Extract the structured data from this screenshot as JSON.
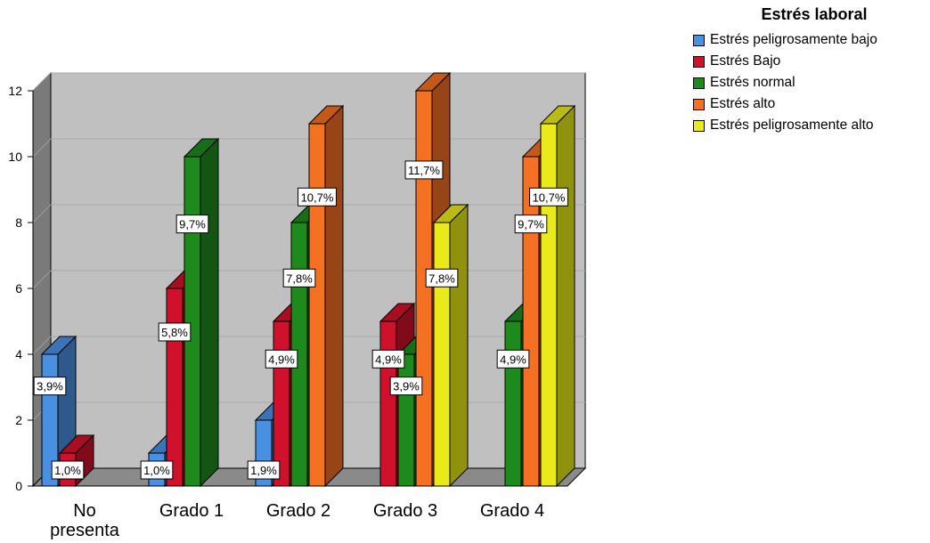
{
  "legend": {
    "title": "Estrés laboral",
    "items": [
      {
        "label": "Estrés peligrosamente bajo",
        "color": "#4a90e2"
      },
      {
        "label": "Estrés Bajo",
        "color": "#d0112b"
      },
      {
        "label": "Estrés normal",
        "color": "#1e8a1e"
      },
      {
        "label": "Estrés alto",
        "color": "#f47023"
      },
      {
        "label": "Estrés peligrosamente alto",
        "color": "#eaea1a"
      }
    ]
  },
  "chart_data": {
    "type": "bar",
    "title": "",
    "xlabel": "",
    "ylabel": "",
    "ylim": [
      0,
      12
    ],
    "yticks": [
      "0",
      "2",
      "4",
      "6",
      "8",
      "10",
      "12"
    ],
    "grid": true,
    "legend_position": "top-right",
    "categories": [
      [
        "No",
        "presenta"
      ],
      [
        "Grado 1"
      ],
      [
        "Grado 2"
      ],
      [
        "Grado 3"
      ],
      [
        "Grado 4"
      ]
    ],
    "series": [
      {
        "name": "Estrés peligrosamente bajo",
        "color": "#4a90e2",
        "values": [
          4,
          1,
          2,
          0,
          0
        ],
        "labels": [
          "3,9%",
          "1,0%",
          "1,9%",
          "",
          ""
        ]
      },
      {
        "name": "Estrés Bajo",
        "color": "#d0112b",
        "values": [
          1,
          6,
          5,
          5,
          0
        ],
        "labels": [
          "1,0%",
          "5,8%",
          "4,9%",
          "4,9%",
          ""
        ]
      },
      {
        "name": "Estrés normal",
        "color": "#1e8a1e",
        "values": [
          0,
          10,
          8,
          4,
          5
        ],
        "labels": [
          "",
          "9,7%",
          "7,8%",
          "3,9%",
          "4,9%"
        ]
      },
      {
        "name": "Estrés alto",
        "color": "#f47023",
        "values": [
          0,
          0,
          11,
          12,
          10
        ],
        "labels": [
          "",
          "",
          "10,7%",
          "11,7%",
          "9,7%"
        ]
      },
      {
        "name": "Estrés peligrosamente alto",
        "color": "#eaea1a",
        "values": [
          0,
          0,
          0,
          8,
          11
        ],
        "labels": [
          "",
          "",
          "",
          "7,8%",
          "10,7%"
        ]
      }
    ]
  }
}
